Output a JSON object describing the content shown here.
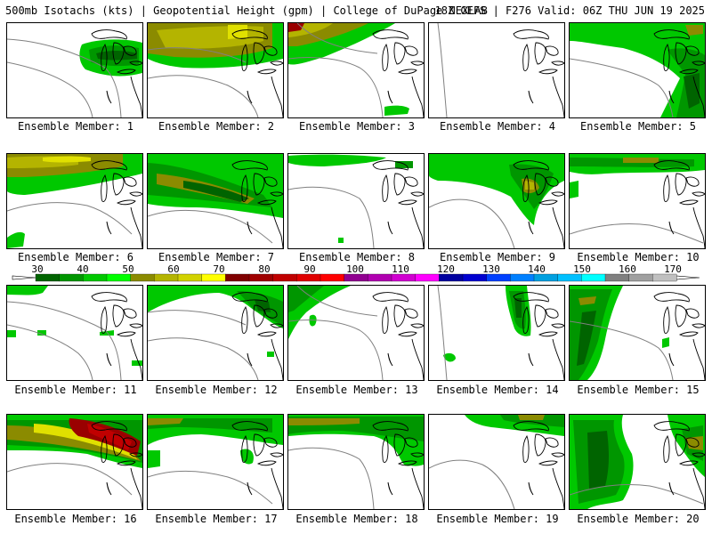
{
  "header": {
    "left": "500mb Isotachs (kts) | Geopotential Height (gpm) | College of DuPage NEXLAB",
    "right": "18Z GEFS | F276 Valid: 06Z THU JUN 19 2025"
  },
  "panels": [
    {
      "label": "Ensemble Member: 1"
    },
    {
      "label": "Ensemble Member: 2"
    },
    {
      "label": "Ensemble Member: 3"
    },
    {
      "label": "Ensemble Member: 4"
    },
    {
      "label": "Ensemble Member: 5"
    },
    {
      "label": "Ensemble Member: 6"
    },
    {
      "label": "Ensemble Member: 7"
    },
    {
      "label": "Ensemble Member: 8"
    },
    {
      "label": "Ensemble Member: 9"
    },
    {
      "label": "Ensemble Member: 10"
    },
    {
      "label": "Ensemble Member: 11"
    },
    {
      "label": "Ensemble Member: 12"
    },
    {
      "label": "Ensemble Member: 13"
    },
    {
      "label": "Ensemble Member: 14"
    },
    {
      "label": "Ensemble Member: 15"
    },
    {
      "label": "Ensemble Member: 16"
    },
    {
      "label": "Ensemble Member: 17"
    },
    {
      "label": "Ensemble Member: 18"
    },
    {
      "label": "Ensemble Member: 19"
    },
    {
      "label": "Ensemble Member: 20"
    }
  ],
  "colorbar": {
    "ticks": [
      "30",
      "40",
      "50",
      "60",
      "70",
      "80",
      "90",
      "100",
      "110",
      "120",
      "130",
      "140",
      "150",
      "160",
      "170"
    ],
    "colors": [
      "#006400",
      "#009600",
      "#00c800",
      "#00ff00",
      "#8b8b00",
      "#b4b400",
      "#d2d200",
      "#ffff00",
      "#800000",
      "#a00000",
      "#c00000",
      "#e00000",
      "#ff0000",
      "#900090",
      "#b000b0",
      "#d000d0",
      "#ff00ff",
      "#0000a0",
      "#0000d0",
      "#0040ff",
      "#0080ff",
      "#00a0e0",
      "#00c0ff",
      "#00ffff",
      "#808080",
      "#a0a0a0",
      "#c0c0c0"
    ]
  }
}
